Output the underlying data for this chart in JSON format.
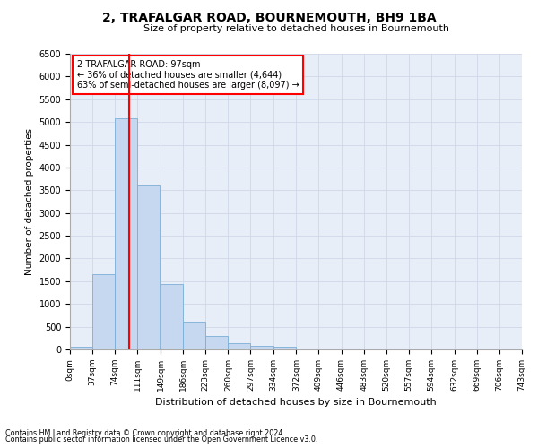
{
  "title": "2, TRAFALGAR ROAD, BOURNEMOUTH, BH9 1BA",
  "subtitle": "Size of property relative to detached houses in Bournemouth",
  "xlabel": "Distribution of detached houses by size in Bournemouth",
  "ylabel": "Number of detached properties",
  "footnote1": "Contains HM Land Registry data © Crown copyright and database right 2024.",
  "footnote2": "Contains public sector information licensed under the Open Government Licence v3.0.",
  "annotation_line1": "2 TRAFALGAR ROAD: 97sqm",
  "annotation_line2": "← 36% of detached houses are smaller (4,644)",
  "annotation_line3": "63% of semi-detached houses are larger (8,097) →",
  "bar_color": "#c5d8f0",
  "bar_edge_color": "#7aaed6",
  "vline_x": 97,
  "vline_color": "red",
  "categories": [
    "0sqm",
    "37sqm",
    "74sqm",
    "111sqm",
    "149sqm",
    "186sqm",
    "223sqm",
    "260sqm",
    "297sqm",
    "334sqm",
    "372sqm",
    "409sqm",
    "446sqm",
    "483sqm",
    "520sqm",
    "557sqm",
    "594sqm",
    "632sqm",
    "669sqm",
    "706sqm",
    "743sqm"
  ],
  "bin_edges": [
    0,
    37,
    74,
    111,
    149,
    186,
    223,
    260,
    297,
    334,
    372,
    409,
    446,
    483,
    520,
    557,
    594,
    632,
    669,
    706,
    743
  ],
  "values": [
    50,
    1650,
    5075,
    3600,
    1430,
    610,
    290,
    140,
    70,
    50,
    0,
    0,
    0,
    0,
    0,
    0,
    0,
    0,
    0,
    0
  ],
  "ylim": [
    0,
    6500
  ],
  "yticks": [
    0,
    500,
    1000,
    1500,
    2000,
    2500,
    3000,
    3500,
    4000,
    4500,
    5000,
    5500,
    6000,
    6500
  ],
  "grid_color": "#d0d8e8",
  "bg_color": "#e8eef8"
}
